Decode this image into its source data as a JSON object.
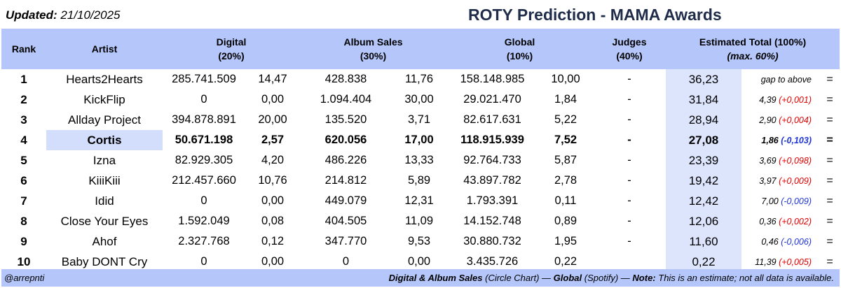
{
  "header": {
    "updated_label": "Updated:",
    "updated_date": "21/10/2025",
    "title": "ROTY Prediction - MAMA Awards"
  },
  "columns": {
    "rank": "Rank",
    "artist": "Artist",
    "digital": "Digital",
    "digital_weight": "(20%)",
    "album": "Album Sales",
    "album_weight": "(30%)",
    "global": "Global",
    "global_weight": "(10%)",
    "judges": "Judges",
    "judges_weight": "(40%)",
    "total": "Estimated Total  (100%)",
    "total_max": "(max. 60%)"
  },
  "rows": [
    {
      "rank": "1",
      "artist": "Hearts2Hearts",
      "digital": "285.741.509",
      "digital_pts": "14,47",
      "album": "428.838",
      "album_pts": "11,76",
      "global": "158.148.985",
      "global_pts": "10,00",
      "judges": "-",
      "total": "36,23",
      "gap": "gap to above",
      "change": "",
      "dir": "",
      "eq": "="
    },
    {
      "rank": "2",
      "artist": "KickFlip",
      "digital": "0",
      "digital_pts": "0,00",
      "album": "1.094.404",
      "album_pts": "30,00",
      "global": "29.021.470",
      "global_pts": "1,84",
      "judges": "-",
      "total": "31,84",
      "gap": "4,39",
      "change": "(+0,001)",
      "dir": "pos",
      "eq": "="
    },
    {
      "rank": "3",
      "artist": "Allday Project",
      "digital": "394.878.891",
      "digital_pts": "20,00",
      "album": "135.520",
      "album_pts": "3,71",
      "global": "82.617.631",
      "global_pts": "5,22",
      "judges": "-",
      "total": "28,94",
      "gap": "2,90",
      "change": "(+0,004)",
      "dir": "pos",
      "eq": "="
    },
    {
      "rank": "4",
      "artist": "Cortis",
      "digital": "50.671.198",
      "digital_pts": "2,57",
      "album": "620.056",
      "album_pts": "17,00",
      "global": "118.915.939",
      "global_pts": "7,52",
      "judges": "-",
      "total": "27,08",
      "gap": "1,86",
      "change": "(-0,103)",
      "dir": "neg",
      "eq": "=",
      "highlight": true
    },
    {
      "rank": "5",
      "artist": "Izna",
      "digital": "82.929.305",
      "digital_pts": "4,20",
      "album": "486.226",
      "album_pts": "13,33",
      "global": "92.764.733",
      "global_pts": "5,87",
      "judges": "-",
      "total": "23,39",
      "gap": "3,69",
      "change": "(+0,098)",
      "dir": "pos",
      "eq": "="
    },
    {
      "rank": "6",
      "artist": "KiiiKiii",
      "digital": "212.457.660",
      "digital_pts": "10,76",
      "album": "214.812",
      "album_pts": "5,89",
      "global": "43.897.782",
      "global_pts": "2,78",
      "judges": "-",
      "total": "19,42",
      "gap": "3,97",
      "change": "(+0,009)",
      "dir": "pos",
      "eq": "="
    },
    {
      "rank": "7",
      "artist": "Idid",
      "digital": "0",
      "digital_pts": "0,00",
      "album": "449.079",
      "album_pts": "12,31",
      "global": "1.793.391",
      "global_pts": "0,11",
      "judges": "-",
      "total": "12,42",
      "gap": "7,00",
      "change": "(-0,009)",
      "dir": "neg",
      "eq": "="
    },
    {
      "rank": "8",
      "artist": "Close Your Eyes",
      "digital": "1.592.049",
      "digital_pts": "0,08",
      "album": "404.505",
      "album_pts": "11,09",
      "global": "14.152.748",
      "global_pts": "0,89",
      "judges": "-",
      "total": "12,06",
      "gap": "0,36",
      "change": "(+0,002)",
      "dir": "pos",
      "eq": "="
    },
    {
      "rank": "9",
      "artist": "Ahof",
      "digital": "2.327.768",
      "digital_pts": "0,12",
      "album": "347.770",
      "album_pts": "9,53",
      "global": "30.880.732",
      "global_pts": "1,95",
      "judges": "-",
      "total": "11,60",
      "gap": "0,46",
      "change": "(-0,006)",
      "dir": "neg",
      "eq": "="
    },
    {
      "rank": "10",
      "artist": "Baby DONT Cry",
      "digital": "0",
      "digital_pts": "0,00",
      "album": "0",
      "album_pts": "0,00",
      "global": "3.435.726",
      "global_pts": "0,22",
      "judges": "",
      "total": "0,22",
      "gap": "11,39",
      "change": "(+0,005)",
      "dir": "pos",
      "eq": "="
    }
  ],
  "footer": {
    "handle": "@arrepnti",
    "sources_bold_1": "Digital & Album Sales",
    "sources_1": "(Circle Chart)",
    "sep_1": "—",
    "sources_bold_2": "Global",
    "sources_2": "(Spotify)",
    "sep_2": "—",
    "note_label": "Note:",
    "note_text": "This is an estimate; not all data is available."
  },
  "colors": {
    "header_bg": "#b4c6fa",
    "total_bg": "#dde5fd",
    "highlight_bg": "#d2defc",
    "positive_change": "#e00000",
    "negative_change": "#1f35d9",
    "title": "#1f2d4a"
  }
}
